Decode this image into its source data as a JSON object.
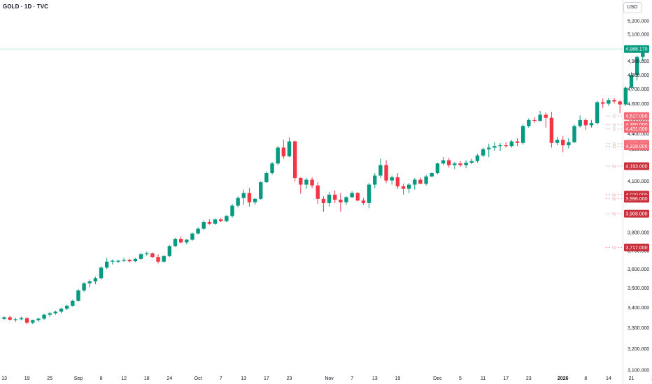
{
  "header": {
    "symbol": "GOLD · 1D · TVC",
    "currency": "USD"
  },
  "colors": {
    "up": "#089981",
    "down": "#f23645",
    "level_line": "#c4e8e2",
    "tag_text": "#ffffff",
    "level_dash": "#f7a9af"
  },
  "chart_data": {
    "type": "candlestick",
    "y_scale": "log",
    "ylim": [
      3050,
      5300
    ],
    "y_ticks": [
      "3,100.000",
      "3,200.000",
      "3,300.000",
      "3,400.000",
      "3,500.000",
      "3,600.000",
      "3,700.000",
      "3,800.000",
      "3,900.000",
      "4,000.000",
      "4,100.000",
      "4,200.000",
      "4,300.000",
      "4,400.000",
      "4,500.000",
      "4,600.000",
      "4,700.000",
      "4,800.000",
      "4,900.000",
      "5,000.000",
      "5,100.000",
      "5,200.000"
    ],
    "x_ticks": [
      {
        "label": "13",
        "i": 0
      },
      {
        "label": "19",
        "i": 4
      },
      {
        "label": "25",
        "i": 8
      },
      {
        "label": "Sep",
        "i": 13
      },
      {
        "label": "8",
        "i": 17
      },
      {
        "label": "12",
        "i": 21
      },
      {
        "label": "18",
        "i": 25
      },
      {
        "label": "24",
        "i": 29
      },
      {
        "label": "Oct",
        "i": 34
      },
      {
        "label": "7",
        "i": 38
      },
      {
        "label": "13",
        "i": 42
      },
      {
        "label": "17",
        "i": 46
      },
      {
        "label": "23",
        "i": 50
      },
      {
        "label": "Nov",
        "i": 57
      },
      {
        "label": "7",
        "i": 61
      },
      {
        "label": "13",
        "i": 65
      },
      {
        "label": "19",
        "i": 69
      },
      {
        "label": "Dec",
        "i": 76
      },
      {
        "label": "5",
        "i": 80
      },
      {
        "label": "11",
        "i": 84
      },
      {
        "label": "17",
        "i": 88
      },
      {
        "label": "23",
        "i": 92
      },
      {
        "label": "2026",
        "i": 98,
        "bold": true
      },
      {
        "label": "8",
        "i": 102
      },
      {
        "label": "14",
        "i": 106
      },
      {
        "label": "21",
        "i": 110
      },
      {
        "label": "27",
        "i": 114
      }
    ],
    "candles": [
      [
        3344,
        3356,
        3338,
        3352
      ],
      [
        3352,
        3360,
        3335,
        3340
      ],
      [
        3340,
        3350,
        3330,
        3342
      ],
      [
        3342,
        3355,
        3338,
        3348
      ],
      [
        3348,
        3352,
        3318,
        3325
      ],
      [
        3325,
        3340,
        3318,
        3338
      ],
      [
        3338,
        3350,
        3330,
        3345
      ],
      [
        3345,
        3370,
        3340,
        3365
      ],
      [
        3365,
        3378,
        3355,
        3372
      ],
      [
        3372,
        3385,
        3365,
        3380
      ],
      [
        3380,
        3400,
        3372,
        3395
      ],
      [
        3395,
        3415,
        3388,
        3410
      ],
      [
        3410,
        3440,
        3405,
        3435
      ],
      [
        3435,
        3495,
        3430,
        3488
      ],
      [
        3488,
        3530,
        3480,
        3525
      ],
      [
        3525,
        3545,
        3505,
        3535
      ],
      [
        3535,
        3560,
        3520,
        3552
      ],
      [
        3552,
        3615,
        3545,
        3608
      ],
      [
        3608,
        3660,
        3600,
        3640
      ],
      [
        3640,
        3652,
        3625,
        3645
      ],
      [
        3640,
        3650,
        3632,
        3645
      ],
      [
        3645,
        3660,
        3638,
        3650
      ],
      [
        3650,
        3655,
        3635,
        3642
      ],
      [
        3642,
        3660,
        3638,
        3655
      ],
      [
        3655,
        3688,
        3650,
        3680
      ],
      [
        3680,
        3695,
        3672,
        3685
      ],
      [
        3685,
        3690,
        3660,
        3665
      ],
      [
        3665,
        3680,
        3630,
        3640
      ],
      [
        3640,
        3675,
        3635,
        3670
      ],
      [
        3670,
        3730,
        3665,
        3725
      ],
      [
        3725,
        3770,
        3720,
        3765
      ],
      [
        3765,
        3778,
        3740,
        3745
      ],
      [
        3745,
        3765,
        3735,
        3760
      ],
      [
        3760,
        3800,
        3755,
        3795
      ],
      [
        3795,
        3830,
        3790,
        3822
      ],
      [
        3822,
        3870,
        3815,
        3860
      ],
      [
        3860,
        3875,
        3845,
        3850
      ],
      [
        3850,
        3880,
        3845,
        3875
      ],
      [
        3875,
        3885,
        3860,
        3865
      ],
      [
        3865,
        3900,
        3860,
        3895
      ],
      [
        3895,
        3965,
        3885,
        3955
      ],
      [
        3955,
        4010,
        3945,
        4000
      ],
      [
        4000,
        4050,
        3960,
        4030
      ],
      [
        4030,
        4060,
        3950,
        3975
      ],
      [
        3975,
        4000,
        3960,
        3995
      ],
      [
        3995,
        4100,
        3990,
        4095
      ],
      [
        4095,
        4160,
        4090,
        4150
      ],
      [
        4150,
        4220,
        4140,
        4210
      ],
      [
        4210,
        4320,
        4200,
        4310
      ],
      [
        4310,
        4360,
        4240,
        4255
      ],
      [
        4255,
        4375,
        4250,
        4350
      ],
      [
        4350,
        4355,
        4100,
        4120
      ],
      [
        4120,
        4125,
        4025,
        4080
      ],
      [
        4080,
        4120,
        4055,
        4110
      ],
      [
        4110,
        4125,
        4060,
        4075
      ],
      [
        4075,
        4095,
        3965,
        3995
      ],
      [
        3995,
        4010,
        3920,
        3970
      ],
      [
        3970,
        4035,
        3950,
        4020
      ],
      [
        4020,
        4045,
        3970,
        3990
      ],
      [
        3990,
        4030,
        3920,
        3975
      ],
      [
        3975,
        4010,
        3960,
        4005
      ],
      [
        4005,
        4040,
        4000,
        4030
      ],
      [
        4030,
        4035,
        3980,
        3985
      ],
      [
        3985,
        4000,
        3960,
        3970
      ],
      [
        3970,
        4090,
        3940,
        4080
      ],
      [
        4080,
        4150,
        4060,
        4135
      ],
      [
        4135,
        4240,
        4120,
        4200
      ],
      [
        4200,
        4230,
        4090,
        4105
      ],
      [
        4105,
        4135,
        4080,
        4125
      ],
      [
        4125,
        4150,
        4055,
        4070
      ],
      [
        4070,
        4085,
        4020,
        4055
      ],
      [
        4055,
        4090,
        4030,
        4080
      ],
      [
        4080,
        4120,
        4050,
        4110
      ],
      [
        4110,
        4125,
        4100,
        4085
      ],
      [
        4085,
        4140,
        4075,
        4130
      ],
      [
        4130,
        4155,
        4125,
        4150
      ],
      [
        4150,
        4215,
        4145,
        4210
      ],
      [
        4210,
        4250,
        4200,
        4230
      ],
      [
        4230,
        4245,
        4185,
        4200
      ],
      [
        4200,
        4220,
        4175,
        4210
      ],
      [
        4210,
        4225,
        4190,
        4200
      ],
      [
        4200,
        4230,
        4180,
        4215
      ],
      [
        4215,
        4240,
        4205,
        4225
      ],
      [
        4225,
        4270,
        4215,
        4260
      ],
      [
        4260,
        4310,
        4250,
        4300
      ],
      [
        4300,
        4335,
        4250,
        4310
      ],
      [
        4310,
        4345,
        4290,
        4320
      ],
      [
        4320,
        4340,
        4290,
        4325
      ],
      [
        4325,
        4345,
        4310,
        4320
      ],
      [
        4320,
        4360,
        4310,
        4350
      ],
      [
        4350,
        4370,
        4320,
        4340
      ],
      [
        4340,
        4460,
        4330,
        4450
      ],
      [
        4450,
        4500,
        4440,
        4490
      ],
      [
        4490,
        4510,
        4470,
        4485
      ],
      [
        4485,
        4550,
        4480,
        4525
      ],
      [
        4525,
        4540,
        4440,
        4505
      ],
      [
        4505,
        4545,
        4310,
        4340
      ],
      [
        4340,
        4380,
        4325,
        4360
      ],
      [
        4360,
        4385,
        4280,
        4325
      ],
      [
        4325,
        4370,
        4305,
        4345
      ],
      [
        4345,
        4460,
        4340,
        4450
      ],
      [
        4450,
        4520,
        4440,
        4490
      ],
      [
        4490,
        4500,
        4425,
        4455
      ],
      [
        4455,
        4490,
        4440,
        4470
      ],
      [
        4470,
        4620,
        4460,
        4610
      ],
      [
        4610,
        4635,
        4570,
        4600
      ],
      [
        4600,
        4640,
        4585,
        4625
      ],
      [
        4625,
        4640,
        4600,
        4615
      ],
      [
        4615,
        4625,
        4535,
        4595
      ],
      [
        4595,
        4720,
        4585,
        4710
      ],
      [
        4710,
        4820,
        4700,
        4800
      ],
      [
        4800,
        4940,
        4760,
        4930
      ],
      [
        4930,
        4990,
        4900,
        4988
      ]
    ],
    "last_price": {
      "label": "4,988.170",
      "value": 4988.17
    },
    "levels": [
      {
        "label": "4,517.000",
        "value": 4517,
        "tag": "D",
        "style": "light"
      },
      {
        "label": "4,460.000",
        "value": 4460,
        "tag": "D",
        "style": "light"
      },
      {
        "label": "4,431.000",
        "value": 4431,
        "tag": "D",
        "style": "light"
      },
      {
        "label": "4,335.000",
        "value": 4335,
        "tag": "D",
        "style": "light"
      },
      {
        "label": "4,318.000",
        "value": 4318,
        "tag": "D",
        "style": "light"
      },
      {
        "label": "4,193.000",
        "value": 4193,
        "tag": "W",
        "style": "dark"
      },
      {
        "label": "4,020.000",
        "value": 4020,
        "tag": "W",
        "style": "dark"
      },
      {
        "label": "3,996.000",
        "value": 3996,
        "tag": "W",
        "style": "dark"
      },
      {
        "label": "3,908.000",
        "value": 3908,
        "tag": "W",
        "style": "dark"
      },
      {
        "label": "3,717.000",
        "value": 3717,
        "tag": "W",
        "style": "dark"
      }
    ]
  }
}
